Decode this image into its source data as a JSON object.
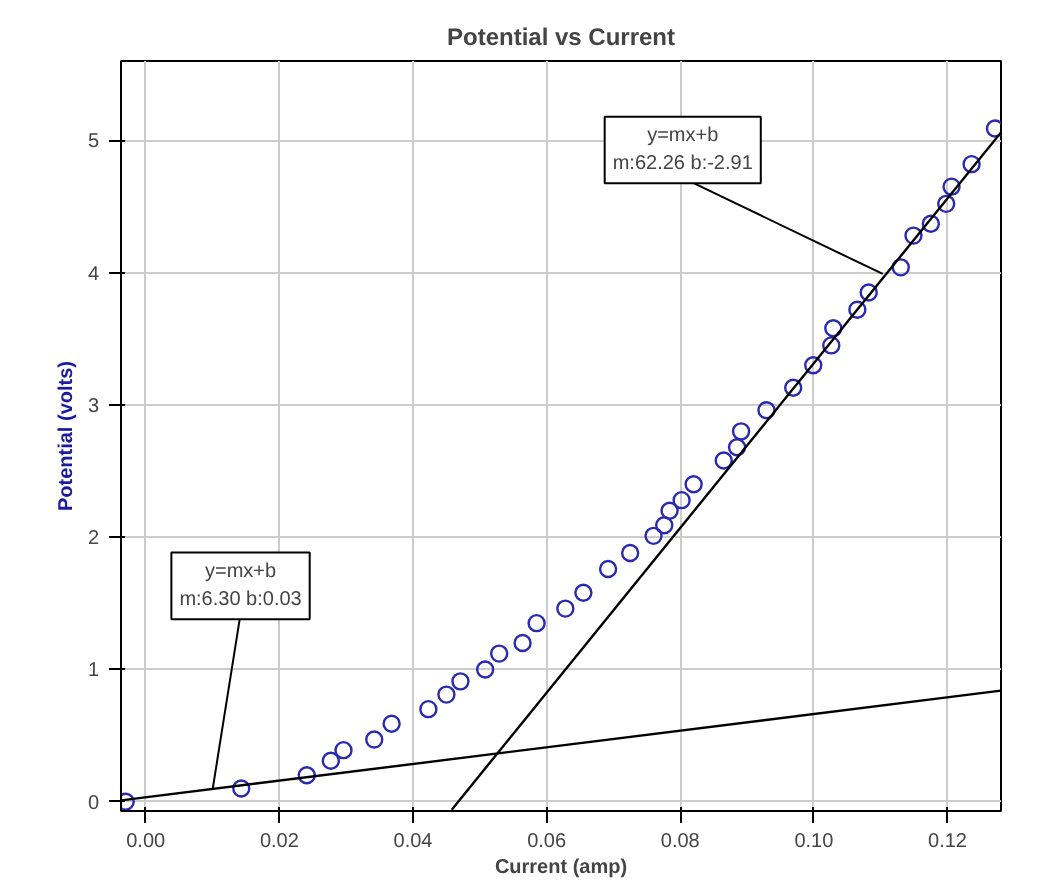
{
  "chart_data": {
    "type": "scatter",
    "title": "Potential vs Current",
    "xlabel": "Current (amp)",
    "ylabel": "Potential (volts)",
    "xlim": [
      -0.0037,
      0.128
    ],
    "ylim": [
      -0.07,
      5.6
    ],
    "xticks": [
      {
        "value": 0,
        "label": "0.00"
      },
      {
        "value": 0.02,
        "label": "0.02"
      },
      {
        "value": 0.04,
        "label": "0.04"
      },
      {
        "value": 0.06,
        "label": "0.06"
      },
      {
        "value": 0.08,
        "label": "0.08"
      },
      {
        "value": 0.1,
        "label": "0.10"
      },
      {
        "value": 0.12,
        "label": "0.12"
      }
    ],
    "yticks": [
      0,
      1,
      2,
      3,
      4,
      5
    ],
    "grid": true,
    "marker": "circle",
    "series": [
      {
        "color": "#2a2ab0",
        "x": [
          -0.003,
          0.0143,
          0.0241,
          0.0277,
          0.0296,
          0.0342,
          0.0368,
          0.0423,
          0.045,
          0.0471,
          0.0508,
          0.0529,
          0.0564,
          0.0585,
          0.0628,
          0.0655,
          0.0692,
          0.0725,
          0.076,
          0.0776,
          0.0784,
          0.0802,
          0.082,
          0.0865,
          0.0885,
          0.0891,
          0.0929,
          0.0969,
          0.0999,
          0.1026,
          0.1029,
          0.1065,
          0.1082,
          0.113,
          0.1149,
          0.1175,
          0.1198,
          0.1206,
          0.1236,
          0.1271
        ],
        "values": [
          0.0,
          0.1,
          0.2,
          0.31,
          0.39,
          0.47,
          0.59,
          0.7,
          0.81,
          0.91,
          1.0,
          1.12,
          1.2,
          1.35,
          1.46,
          1.58,
          1.76,
          1.88,
          2.01,
          2.09,
          2.2,
          2.28,
          2.4,
          2.58,
          2.68,
          2.8,
          2.96,
          3.13,
          3.3,
          3.45,
          3.58,
          3.72,
          3.85,
          4.04,
          4.28,
          4.37,
          4.52,
          4.65,
          4.82,
          5.09
        ]
      },
      {
        "type": "line",
        "marker": "none",
        "color": "#000000",
        "x": [
          -0.0037,
          0.128
        ],
        "values": [
          0.01,
          0.84
        ]
      },
      {
        "type": "line",
        "marker": "none",
        "color": "#000000",
        "x": [
          0.0458,
          0.128
        ],
        "values": [
          -0.06,
          5.06
        ]
      }
    ],
    "annotations": [
      {
        "text": "y=mx+b\nm:6.30 b:0.03",
        "x": 0.01,
        "y": 0.09
      },
      {
        "text": "y=mx+b\nm:62.26 b:-2.91",
        "x": 0.1103,
        "y": 3.99
      }
    ]
  }
}
